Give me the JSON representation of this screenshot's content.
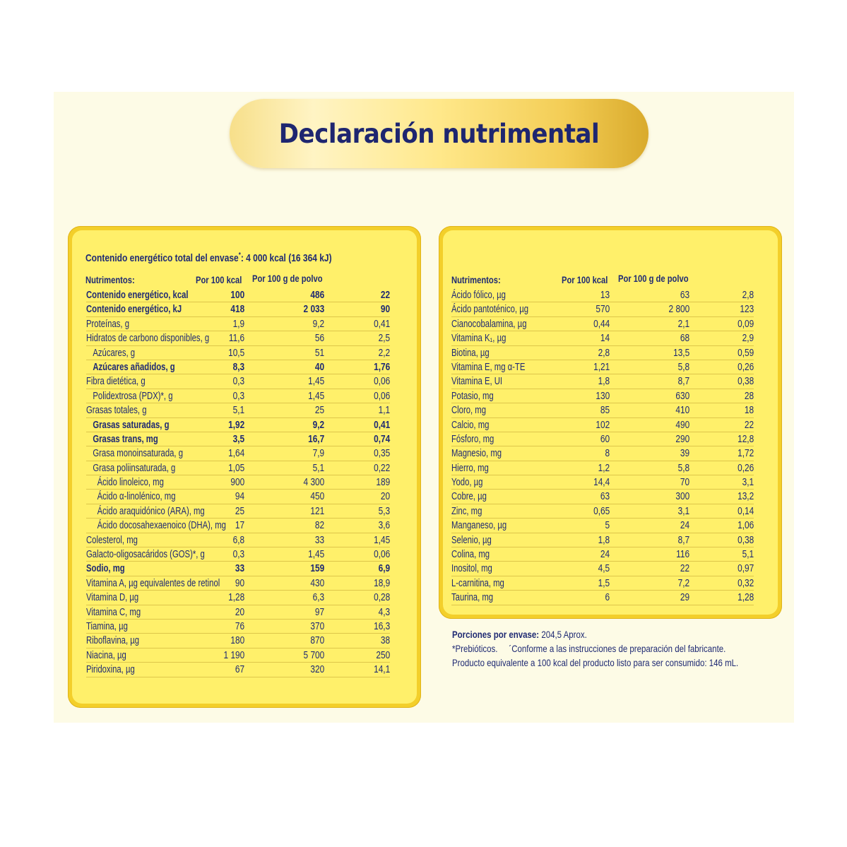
{
  "title": "Declaración nutrimental",
  "left": {
    "energy_total": "Contenido energético total del envase",
    "energy_total_mark": "*",
    "energy_total_value": ": 4 000 kcal (16 364 kJ)",
    "header": {
      "name": "Nutrimentos:",
      "col1": "Por 100 kcal",
      "col2": "Por 100 g de polvo"
    },
    "rows": [
      {
        "name": "Contenido energético, kcal",
        "v1": "100",
        "v2": "486",
        "v3": "22",
        "bold": true,
        "indent": 0
      },
      {
        "name": "Contenido energético, kJ",
        "v1": "418",
        "v2": "2 033",
        "v3": "90",
        "bold": true,
        "indent": 0
      },
      {
        "name": "Proteínas, g",
        "v1": "1,9",
        "v2": "9,2",
        "v3": "0,41",
        "bold": false,
        "indent": 0
      },
      {
        "name": "Hidratos de carbono disponibles, g",
        "v1": "11,6",
        "v2": "56",
        "v3": "2,5",
        "bold": false,
        "indent": 0
      },
      {
        "name": "Azúcares, g",
        "v1": "10,5",
        "v2": "51",
        "v3": "2,2",
        "bold": false,
        "indent": 1
      },
      {
        "name": "Azúcares añadidos, g",
        "v1": "8,3",
        "v2": "40",
        "v3": "1,76",
        "bold": true,
        "indent": 1
      },
      {
        "name": "Fibra dietética, g",
        "v1": "0,3",
        "v2": "1,45",
        "v3": "0,06",
        "bold": false,
        "indent": 0
      },
      {
        "name": "Polidextrosa (PDX)*, g",
        "v1": "0,3",
        "v2": "1,45",
        "v3": "0,06",
        "bold": false,
        "indent": 1
      },
      {
        "name": "Grasas totales, g",
        "v1": "5,1",
        "v2": "25",
        "v3": "1,1",
        "bold": false,
        "indent": 0
      },
      {
        "name": "Grasas saturadas, g",
        "v1": "1,92",
        "v2": "9,2",
        "v3": "0,41",
        "bold": true,
        "indent": 1
      },
      {
        "name": "Grasas trans, mg",
        "v1": "3,5",
        "v2": "16,7",
        "v3": "0,74",
        "bold": true,
        "indent": 1
      },
      {
        "name": "Grasa monoinsaturada, g",
        "v1": "1,64",
        "v2": "7,9",
        "v3": "0,35",
        "bold": false,
        "indent": 1
      },
      {
        "name": "Grasa poliinsaturada, g",
        "v1": "1,05",
        "v2": "5,1",
        "v3": "0,22",
        "bold": false,
        "indent": 1
      },
      {
        "name": "Ácido linoleico, mg",
        "v1": "900",
        "v2": "4 300",
        "v3": "189",
        "bold": false,
        "indent": 2
      },
      {
        "name": "Ácido α-linolénico, mg",
        "v1": "94",
        "v2": "450",
        "v3": "20",
        "bold": false,
        "indent": 2
      },
      {
        "name": "Ácido araquidónico (ARA), mg",
        "v1": "25",
        "v2": "121",
        "v3": "5,3",
        "bold": false,
        "indent": 2
      },
      {
        "name": "Ácido docosahexaenoico (DHA), mg",
        "v1": "17",
        "v2": "82",
        "v3": "3,6",
        "bold": false,
        "indent": 2
      },
      {
        "name": "Colesterol, mg",
        "v1": "6,8",
        "v2": "33",
        "v3": "1,45",
        "bold": false,
        "indent": 0
      },
      {
        "name": "Galacto-oligosacáridos (GOS)*, g",
        "v1": "0,3",
        "v2": "1,45",
        "v3": "0,06",
        "bold": false,
        "indent": 0
      },
      {
        "name": "Sodio, mg",
        "v1": "33",
        "v2": "159",
        "v3": "6,9",
        "bold": true,
        "indent": 0
      },
      {
        "name": "Vitamina A, µg equivalentes de retinol",
        "v1": "90",
        "v2": "430",
        "v3": "18,9",
        "bold": false,
        "indent": 0
      },
      {
        "name": "Vitamina D, µg",
        "v1": "1,28",
        "v2": "6,3",
        "v3": "0,28",
        "bold": false,
        "indent": 0
      },
      {
        "name": "Vitamina C, mg",
        "v1": "20",
        "v2": "97",
        "v3": "4,3",
        "bold": false,
        "indent": 0
      },
      {
        "name": "Tiamina, µg",
        "v1": "76",
        "v2": "370",
        "v3": "16,3",
        "bold": false,
        "indent": 0
      },
      {
        "name": "Riboflavina, µg",
        "v1": "180",
        "v2": "870",
        "v3": "38",
        "bold": false,
        "indent": 0
      },
      {
        "name": "Niacina, µg",
        "v1": "1 190",
        "v2": "5 700",
        "v3": "250",
        "bold": false,
        "indent": 0
      },
      {
        "name": "Piridoxina, µg",
        "v1": "67",
        "v2": "320",
        "v3": "14,1",
        "bold": false,
        "indent": 0
      }
    ]
  },
  "right": {
    "header": {
      "name": "Nutrimentos:",
      "col1": "Por 100 kcal",
      "col2": "Por 100 g de polvo"
    },
    "rows": [
      {
        "name": "Ácido fólico, µg",
        "v1": "13",
        "v2": "63",
        "v3": "2,8"
      },
      {
        "name": "Ácido pantoténico, µg",
        "v1": "570",
        "v2": "2 800",
        "v3": "123"
      },
      {
        "name": "Cianocobalamina, µg",
        "v1": "0,44",
        "v2": "2,1",
        "v3": "0,09"
      },
      {
        "name": "Vitamina K₁, µg",
        "v1": "14",
        "v2": "68",
        "v3": "2,9"
      },
      {
        "name": "Biotina, µg",
        "v1": "2,8",
        "v2": "13,5",
        "v3": "0,59"
      },
      {
        "name": "Vitamina E, mg α-TE",
        "v1": "1,21",
        "v2": "5,8",
        "v3": "0,26"
      },
      {
        "name": "Vitamina E, UI",
        "v1": "1,8",
        "v2": "8,7",
        "v3": "0,38"
      },
      {
        "name": "Potasio, mg",
        "v1": "130",
        "v2": "630",
        "v3": "28"
      },
      {
        "name": "Cloro, mg",
        "v1": "85",
        "v2": "410",
        "v3": "18"
      },
      {
        "name": "Calcio, mg",
        "v1": "102",
        "v2": "490",
        "v3": "22"
      },
      {
        "name": "Fósforo, mg",
        "v1": "60",
        "v2": "290",
        "v3": "12,8"
      },
      {
        "name": "Magnesio, mg",
        "v1": "8",
        "v2": "39",
        "v3": "1,72"
      },
      {
        "name": "Hierro, mg",
        "v1": "1,2",
        "v2": "5,8",
        "v3": "0,26"
      },
      {
        "name": "Yodo, µg",
        "v1": "14,4",
        "v2": "70",
        "v3": "3,1"
      },
      {
        "name": "Cobre, µg",
        "v1": "63",
        "v2": "300",
        "v3": "13,2"
      },
      {
        "name": "Zinc, mg",
        "v1": "0,65",
        "v2": "3,1",
        "v3": "0,14"
      },
      {
        "name": "Manganeso, µg",
        "v1": "5",
        "v2": "24",
        "v3": "1,06"
      },
      {
        "name": "Selenio, µg",
        "v1": "1,8",
        "v2": "8,7",
        "v3": "0,38"
      },
      {
        "name": "Colina, mg",
        "v1": "24",
        "v2": "116",
        "v3": "5,1"
      },
      {
        "name": "Inositol, mg",
        "v1": "4,5",
        "v2": "22",
        "v3": "0,97"
      },
      {
        "name": "L-carnitina, mg",
        "v1": "1,5",
        "v2": "7,2",
        "v3": "0,32"
      },
      {
        "name": "Taurina, mg",
        "v1": "6",
        "v2": "29",
        "v3": "1,28"
      }
    ]
  },
  "footer": {
    "portions_label": "Porciones por envase:",
    "portions_value": "204,5 Aprox.",
    "prebiotics": "*Prebióticos.",
    "preparation": "´Conforme a las instrucciones de preparación del fabricante.",
    "equivalent": "Producto equivalente a 100 kcal del producto listo para ser consumido: 146 mL."
  }
}
